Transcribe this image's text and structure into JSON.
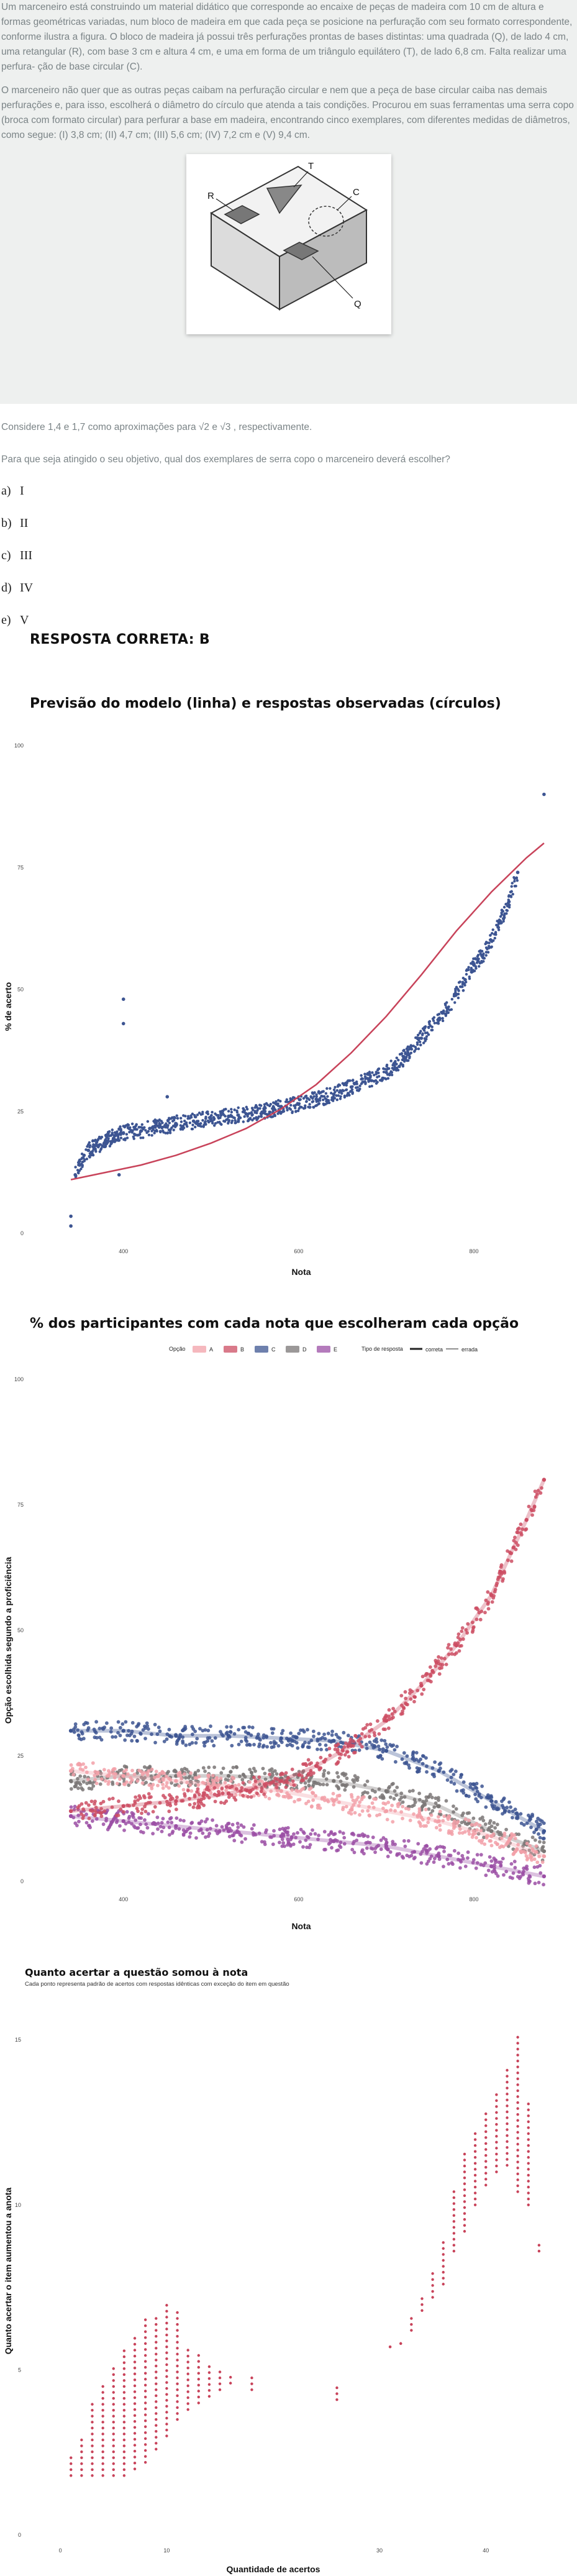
{
  "question": {
    "paragraph1": "Um marceneiro está construindo um material didático que corresponde ao encaixe de peças de madeira com 10 cm de altura e formas geométricas variadas, num bloco de madeira em que cada peça se posicione na perfuração com seu formato correspondente, conforme ilustra a figura. O bloco de madeira já possui três perfurações prontas de bases distintas: uma quadrada (Q), de lado 4 cm, uma retangular (R), com base 3 cm e altura 4 cm, e uma em forma de um triângulo equilátero (T), de lado 6,8 cm. Falta realizar uma perfura- ção de base circular (C).",
    "paragraph2": "O marceneiro não quer que as outras peças caibam na perfuração circular e nem que a peça de base circular caiba nas demais perfurações e, para isso, escolherá o diâmetro do círculo que atenda a tais condições. Procurou em suas ferramentas uma serra copo (broca com formato circular) para perfurar a base em madeira, encontrando cinco exemplares, com diferentes medidas de diâmetros, como segue: (I) 3,8 cm; (II) 4,7 cm; (III) 5,6 cm; (IV) 7,2 cm e (V) 9,4 cm.",
    "figure_labels": [
      "R",
      "T",
      "C",
      "Q"
    ],
    "approximations": "Considere 1,4 e 1,7 como aproximações para √2 e √3 , respectivamente.",
    "prompt": "Para que seja atingido o seu objetivo, qual dos exemplares de serra copo o marceneiro deverá escolher?",
    "options": [
      {
        "letter": "a)",
        "text": "I"
      },
      {
        "letter": "b)",
        "text": "II"
      },
      {
        "letter": "c)",
        "text": "III"
      },
      {
        "letter": "d)",
        "text": "IV"
      },
      {
        "letter": "e)",
        "text": "V"
      }
    ],
    "correct_answer": "RESPOSTA CORRETA: B"
  },
  "colors": {
    "model_line": "#c8435a",
    "observed": "#3d5592",
    "option_A": "#f2a0a8",
    "option_B": "#cc4d63",
    "option_C": "#3d5592",
    "option_D": "#7a7675",
    "option_E": "#9b4fa5"
  },
  "chart_data": [
    {
      "type": "scatter",
      "title": "Previsão do modelo (linha) e respostas observadas (círculos)",
      "xlabel": "Nota",
      "ylabel": "% de acerto",
      "x_ticks": [
        "400",
        "600",
        "800"
      ],
      "y_ticks": [
        "0",
        "25",
        "50",
        "75",
        "100"
      ],
      "xlim": [
        330,
        890
      ],
      "ylim": [
        0,
        100
      ],
      "grid": false,
      "series": [
        {
          "kind": "line",
          "x": [
            340,
            380,
            420,
            460,
            500,
            540,
            580,
            620,
            660,
            700,
            740,
            780,
            820,
            860,
            880
          ],
          "y": [
            11,
            12.5,
            14,
            16,
            18.5,
            21.5,
            25.5,
            30.5,
            37,
            44.5,
            53,
            62,
            70,
            77,
            80
          ]
        },
        {
          "kind": "points",
          "x": [
            340,
            340,
            345,
            350,
            355,
            360,
            370,
            380,
            390,
            400,
            410,
            420,
            430,
            440,
            450,
            460,
            480,
            500,
            520,
            540,
            560,
            580,
            600,
            620,
            640,
            660,
            680,
            700,
            720,
            740,
            760,
            770,
            780,
            790,
            800,
            810,
            820,
            830,
            840,
            850,
            880,
            400,
            400,
            450,
            395
          ],
          "y": [
            1.5,
            3.5,
            12,
            14,
            16,
            17,
            18,
            19,
            20,
            20.5,
            21,
            21,
            21.5,
            22,
            22,
            22.5,
            23,
            23.5,
            24,
            24.5,
            25,
            26,
            26.5,
            27.5,
            28.5,
            30,
            31.5,
            33,
            36,
            40,
            44,
            46,
            49,
            52,
            55,
            57,
            60,
            64,
            68,
            74,
            90,
            48,
            43,
            28,
            12
          ]
        }
      ]
    },
    {
      "type": "scatter",
      "title": "% dos participantes com cada nota que escolheram cada opção",
      "xlabel": "Nota",
      "ylabel": "Opção escolhida segundo a proficiência",
      "legend_title": "Opção",
      "legend_items": [
        "A",
        "B",
        "C",
        "D",
        "E"
      ],
      "legend_type_title": "Tipo de resposta",
      "legend_types": [
        "correta",
        "errada"
      ],
      "legend_position": "top-right",
      "x_ticks": [
        "400",
        "600",
        "800"
      ],
      "y_ticks": [
        "0",
        "25",
        "50",
        "75",
        "100"
      ],
      "xlim": [
        330,
        890
      ],
      "ylim": [
        0,
        100
      ],
      "series": [
        {
          "name": "A",
          "x": [
            340,
            400,
            460,
            520,
            580,
            640,
            700,
            760,
            820,
            880
          ],
          "y": [
            22,
            21,
            20,
            19,
            18,
            16,
            14,
            12,
            9,
            5
          ]
        },
        {
          "name": "B",
          "x": [
            340,
            400,
            460,
            520,
            580,
            620,
            660,
            700,
            740,
            780,
            820,
            860,
            880
          ],
          "y": [
            14,
            15,
            16,
            17.5,
            20,
            23,
            27,
            32,
            39,
            47,
            57,
            72,
            80
          ]
        },
        {
          "name": "C",
          "x": [
            340,
            400,
            460,
            520,
            580,
            640,
            700,
            760,
            820,
            880
          ],
          "y": [
            30,
            30,
            29,
            29,
            28.5,
            28,
            26,
            22,
            16,
            10
          ]
        },
        {
          "name": "D",
          "x": [
            340,
            400,
            460,
            520,
            580,
            640,
            700,
            760,
            820,
            880
          ],
          "y": [
            20,
            21,
            21,
            21,
            20.5,
            20,
            18,
            15,
            10,
            6
          ]
        },
        {
          "name": "E",
          "x": [
            340,
            400,
            460,
            520,
            580,
            640,
            700,
            760,
            820,
            880
          ],
          "y": [
            13,
            12,
            11,
            10,
            9,
            8,
            7,
            5,
            3,
            1
          ]
        }
      ]
    },
    {
      "type": "scatter",
      "title": "Quanto acertar a questão somou à nota",
      "subtitle": "Cada ponto representa padrão de acertos com respostas idênticas com exceção do item em questão",
      "xlabel": "Quantidade de acertos",
      "ylabel": "Quanto acertar o item aumentou a anota",
      "x_ticks": [
        "0",
        "10",
        "30",
        "40"
      ],
      "y_ticks": [
        "0",
        "5",
        "10",
        "15"
      ],
      "xlim": [
        -1,
        46
      ],
      "ylim": [
        0,
        16
      ],
      "columns": [
        {
          "x": 1,
          "ymin": 1.8,
          "ymax": 2.5
        },
        {
          "x": 2,
          "ymin": 1.8,
          "ymax": 3
        },
        {
          "x": 3,
          "ymin": 1.8,
          "ymax": 4
        },
        {
          "x": 4,
          "ymin": 1.8,
          "ymax": 4.6
        },
        {
          "x": 5,
          "ymin": 1.8,
          "ymax": 5.2
        },
        {
          "x": 6,
          "ymin": 1.8,
          "ymax": 5.6
        },
        {
          "x": 7,
          "ymin": 2,
          "ymax": 6.0
        },
        {
          "x": 8,
          "ymin": 2.2,
          "ymax": 6.6
        },
        {
          "x": 9,
          "ymin": 2.6,
          "ymax": 6.6
        },
        {
          "x": 10,
          "ymin": 3,
          "ymax": 7.0
        },
        {
          "x": 11,
          "ymin": 3.5,
          "ymax": 6.8
        },
        {
          "x": 12,
          "ymin": 3.8,
          "ymax": 5.6
        },
        {
          "x": 13,
          "ymin": 4,
          "ymax": 5.5
        },
        {
          "x": 14,
          "ymin": 4.2,
          "ymax": 5.2
        },
        {
          "x": 15,
          "ymin": 4.4,
          "ymax": 5
        },
        {
          "x": 16,
          "ymin": 4.6,
          "ymax": 4.8
        },
        {
          "x": 18,
          "ymin": 4.4,
          "ymax": 4.8
        },
        {
          "x": 26,
          "ymin": 4.1,
          "ymax": 4.6
        },
        {
          "x": 31,
          "ymin": 5.7,
          "ymax": 5.7
        },
        {
          "x": 32,
          "ymin": 5.8,
          "ymax": 5.8
        },
        {
          "x": 33,
          "ymin": 6.2,
          "ymax": 6.6
        },
        {
          "x": 34,
          "ymin": 6.8,
          "ymax": 7.2
        },
        {
          "x": 35,
          "ymin": 7.2,
          "ymax": 8.0
        },
        {
          "x": 36,
          "ymin": 7.6,
          "ymax": 9.0
        },
        {
          "x": 37,
          "ymin": 8.6,
          "ymax": 10.4
        },
        {
          "x": 38,
          "ymin": 9.2,
          "ymax": 11.6
        },
        {
          "x": 39,
          "ymin": 10.0,
          "ymax": 12.2
        },
        {
          "x": 40,
          "ymin": 10.6,
          "ymax": 12.8
        },
        {
          "x": 41,
          "ymin": 11.0,
          "ymax": 13.4
        },
        {
          "x": 42,
          "ymin": 11.2,
          "ymax": 14.2
        },
        {
          "x": 43,
          "ymin": 10.4,
          "ymax": 15.1
        },
        {
          "x": 44,
          "ymin": 10.0,
          "ymax": 13.2
        },
        {
          "x": 45,
          "ymin": 8.6,
          "ymax": 8.8
        }
      ]
    }
  ]
}
